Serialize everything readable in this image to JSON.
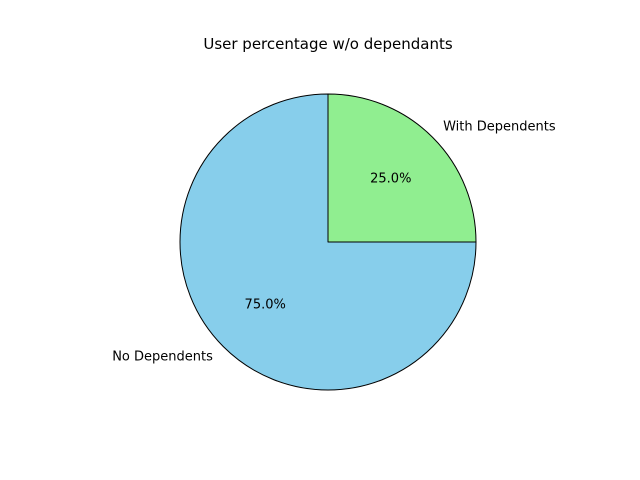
{
  "chart_data": {
    "type": "pie",
    "title": "User percentage w/o dependants",
    "slices": [
      {
        "label": "With Dependents",
        "value": 25.0,
        "pct_label": "25.0%",
        "color": "#90ee90"
      },
      {
        "label": "No Dependents",
        "value": 75.0,
        "pct_label": "75.0%",
        "color": "#87ceeb"
      }
    ],
    "start_angle_deg": 90,
    "direction": "clockwise",
    "edge_color": "#000000",
    "legend": "none"
  }
}
